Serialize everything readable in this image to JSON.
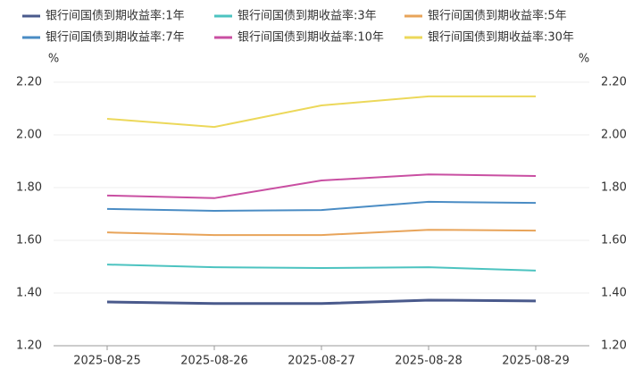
{
  "chart_data": {
    "type": "line",
    "categories": [
      "2025-08-25",
      "2025-08-26",
      "2025-08-27",
      "2025-08-28",
      "2025-08-29"
    ],
    "y_unit": "%",
    "y2_unit": "%",
    "ylim": [
      1.2,
      2.2
    ],
    "yticks": [
      {
        "value": 1.2,
        "label": "1.20"
      },
      {
        "value": 1.4,
        "label": "1.40"
      },
      {
        "value": 1.6,
        "label": "1.60"
      },
      {
        "value": 1.8,
        "label": "1.80"
      },
      {
        "value": 2.0,
        "label": "2.00"
      },
      {
        "value": 2.2,
        "label": "2.20"
      }
    ],
    "y2lim": [
      1.2,
      2.2
    ],
    "y2ticks": [
      {
        "value": 1.2,
        "label": "1.20"
      },
      {
        "value": 1.4,
        "label": "1.40"
      },
      {
        "value": 1.6,
        "label": "1.60"
      },
      {
        "value": 1.8,
        "label": "1.80"
      },
      {
        "value": 2.0,
        "label": "2.00"
      },
      {
        "value": 2.2,
        "label": "2.20"
      }
    ],
    "grid": true,
    "legend": "top",
    "series": [
      {
        "name": "银行间国债到期收益率:1年",
        "color": "#4a5a8c",
        "values": [
          1.366,
          1.36,
          1.36,
          1.373,
          1.37
        ]
      },
      {
        "name": "银行间国债到期收益率:3年",
        "color": "#4cc3c0",
        "values": [
          1.508,
          1.498,
          1.495,
          1.498,
          1.485
        ]
      },
      {
        "name": "银行间国债到期收益率:5年",
        "color": "#e8a45a",
        "values": [
          1.63,
          1.62,
          1.62,
          1.64,
          1.637
        ]
      },
      {
        "name": "银行间国债到期收益率:7年",
        "color": "#4a8cc4",
        "values": [
          1.719,
          1.712,
          1.715,
          1.746,
          1.742
        ]
      },
      {
        "name": "银行间国债到期收益率:10年",
        "color": "#c94fa2",
        "values": [
          1.77,
          1.76,
          1.827,
          1.85,
          1.844
        ]
      },
      {
        "name": "银行间国债到期收益率:30年",
        "color": "#ecd85a",
        "values": [
          2.061,
          2.03,
          2.112,
          2.146,
          2.146
        ]
      }
    ]
  }
}
